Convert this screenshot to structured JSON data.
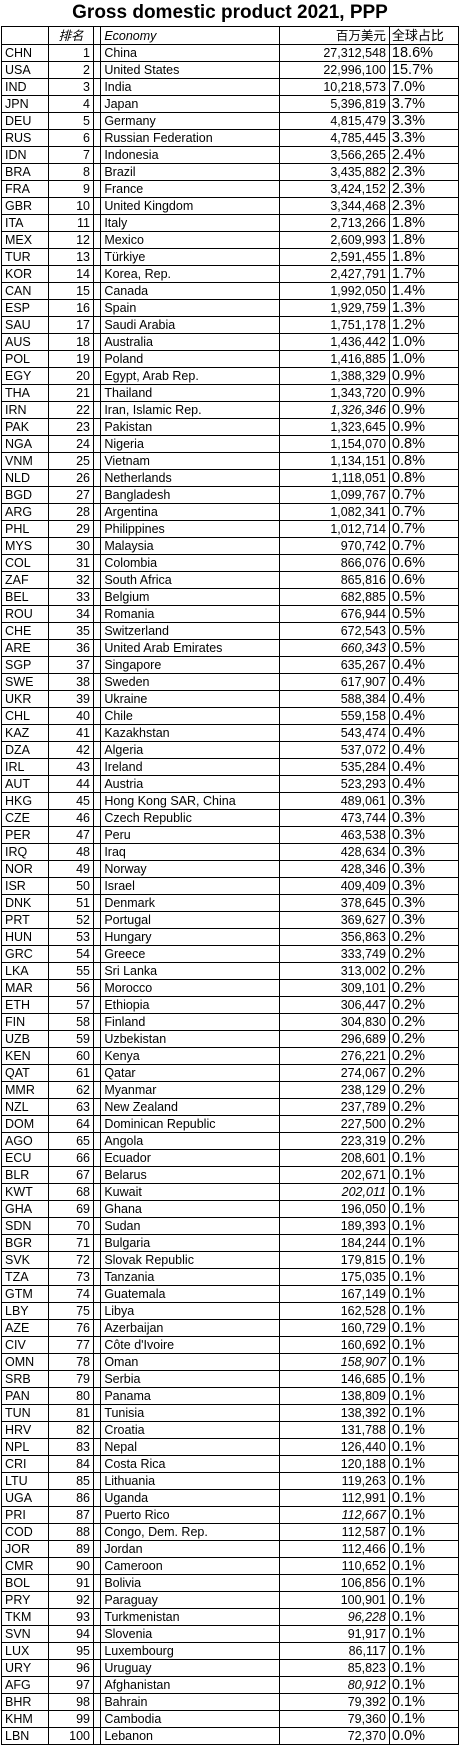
{
  "title": "Gross domestic product 2021, PPP",
  "header": {
    "code": "",
    "rank": "排名",
    "blank": "",
    "economy": "Economy",
    "gdp": "百万美元",
    "share": "全球占比"
  },
  "rows": [
    {
      "code": "CHN",
      "rank": "1",
      "economy": "China",
      "gdp": "27,312,548",
      "share": "18.6%"
    },
    {
      "code": "USA",
      "rank": "2",
      "economy": "United States",
      "gdp": "22,996,100",
      "share": "15.7%"
    },
    {
      "code": "IND",
      "rank": "3",
      "economy": "India",
      "gdp": "10,218,573",
      "share": "7.0%"
    },
    {
      "code": "JPN",
      "rank": "4",
      "economy": "Japan",
      "gdp": "5,396,819",
      "share": "3.7%"
    },
    {
      "code": "DEU",
      "rank": "5",
      "economy": "Germany",
      "gdp": "4,815,479",
      "share": "3.3%"
    },
    {
      "code": "RUS",
      "rank": "6",
      "economy": "Russian Federation",
      "gdp": "4,785,445",
      "share": "3.3%"
    },
    {
      "code": "IDN",
      "rank": "7",
      "economy": "Indonesia",
      "gdp": "3,566,265",
      "share": "2.4%"
    },
    {
      "code": "BRA",
      "rank": "8",
      "economy": "Brazil",
      "gdp": "3,435,882",
      "share": "2.3%"
    },
    {
      "code": "FRA",
      "rank": "9",
      "economy": "France",
      "gdp": "3,424,152",
      "share": "2.3%"
    },
    {
      "code": "GBR",
      "rank": "10",
      "economy": "United Kingdom",
      "gdp": "3,344,468",
      "share": "2.3%"
    },
    {
      "code": "ITA",
      "rank": "11",
      "economy": "Italy",
      "gdp": "2,713,266",
      "share": "1.8%"
    },
    {
      "code": "MEX",
      "rank": "12",
      "economy": "Mexico",
      "gdp": "2,609,993",
      "share": "1.8%"
    },
    {
      "code": "TUR",
      "rank": "13",
      "economy": "Türkiye",
      "gdp": "2,591,455",
      "share": "1.8%"
    },
    {
      "code": "KOR",
      "rank": "14",
      "economy": "Korea, Rep.",
      "gdp": "2,427,791",
      "share": "1.7%"
    },
    {
      "code": "CAN",
      "rank": "15",
      "economy": "Canada",
      "gdp": "1,992,050",
      "share": "1.4%"
    },
    {
      "code": "ESP",
      "rank": "16",
      "economy": "Spain",
      "gdp": "1,929,759",
      "share": "1.3%"
    },
    {
      "code": "SAU",
      "rank": "17",
      "economy": "Saudi Arabia",
      "gdp": "1,751,178",
      "share": "1.2%"
    },
    {
      "code": "AUS",
      "rank": "18",
      "economy": "Australia",
      "gdp": "1,436,442",
      "share": "1.0%"
    },
    {
      "code": "POL",
      "rank": "19",
      "economy": "Poland",
      "gdp": "1,416,885",
      "share": "1.0%"
    },
    {
      "code": "EGY",
      "rank": "20",
      "economy": "Egypt, Arab Rep.",
      "gdp": "1,388,329",
      "share": "0.9%"
    },
    {
      "code": "THA",
      "rank": "21",
      "economy": "Thailand",
      "gdp": "1,343,720",
      "share": "0.9%"
    },
    {
      "code": "IRN",
      "rank": "22",
      "economy": "Iran, Islamic Rep.",
      "gdp": "1,326,346",
      "share": "0.9%",
      "est": true
    },
    {
      "code": "PAK",
      "rank": "23",
      "economy": "Pakistan",
      "gdp": "1,323,645",
      "share": "0.9%"
    },
    {
      "code": "NGA",
      "rank": "24",
      "economy": "Nigeria",
      "gdp": "1,154,070",
      "share": "0.8%"
    },
    {
      "code": "VNM",
      "rank": "25",
      "economy": "Vietnam",
      "gdp": "1,134,151",
      "share": "0.8%"
    },
    {
      "code": "NLD",
      "rank": "26",
      "economy": "Netherlands",
      "gdp": "1,118,051",
      "share": "0.8%"
    },
    {
      "code": "BGD",
      "rank": "27",
      "economy": "Bangladesh",
      "gdp": "1,099,767",
      "share": "0.7%"
    },
    {
      "code": "ARG",
      "rank": "28",
      "economy": "Argentina",
      "gdp": "1,082,341",
      "share": "0.7%"
    },
    {
      "code": "PHL",
      "rank": "29",
      "economy": "Philippines",
      "gdp": "1,012,714",
      "share": "0.7%"
    },
    {
      "code": "MYS",
      "rank": "30",
      "economy": "Malaysia",
      "gdp": "970,742",
      "share": "0.7%"
    },
    {
      "code": "COL",
      "rank": "31",
      "economy": "Colombia",
      "gdp": "866,076",
      "share": "0.6%"
    },
    {
      "code": "ZAF",
      "rank": "32",
      "economy": "South Africa",
      "gdp": "865,816",
      "share": "0.6%"
    },
    {
      "code": "BEL",
      "rank": "33",
      "economy": "Belgium",
      "gdp": "682,885",
      "share": "0.5%"
    },
    {
      "code": "ROU",
      "rank": "34",
      "economy": "Romania",
      "gdp": "676,944",
      "share": "0.5%"
    },
    {
      "code": "CHE",
      "rank": "35",
      "economy": "Switzerland",
      "gdp": "672,543",
      "share": "0.5%"
    },
    {
      "code": "ARE",
      "rank": "36",
      "economy": "United Arab Emirates",
      "gdp": "660,343",
      "share": "0.5%",
      "est": true
    },
    {
      "code": "SGP",
      "rank": "37",
      "economy": "Singapore",
      "gdp": "635,267",
      "share": "0.4%"
    },
    {
      "code": "SWE",
      "rank": "38",
      "economy": "Sweden",
      "gdp": "617,907",
      "share": "0.4%"
    },
    {
      "code": "UKR",
      "rank": "39",
      "economy": "Ukraine",
      "gdp": "588,384",
      "share": "0.4%"
    },
    {
      "code": "CHL",
      "rank": "40",
      "economy": "Chile",
      "gdp": "559,158",
      "share": "0.4%"
    },
    {
      "code": "KAZ",
      "rank": "41",
      "economy": "Kazakhstan",
      "gdp": "543,474",
      "share": "0.4%"
    },
    {
      "code": "DZA",
      "rank": "42",
      "economy": "Algeria",
      "gdp": "537,072",
      "share": "0.4%"
    },
    {
      "code": "IRL",
      "rank": "43",
      "economy": "Ireland",
      "gdp": "535,284",
      "share": "0.4%"
    },
    {
      "code": "AUT",
      "rank": "44",
      "economy": "Austria",
      "gdp": "523,293",
      "share": "0.4%"
    },
    {
      "code": "HKG",
      "rank": "45",
      "economy": "Hong Kong SAR, China",
      "gdp": "489,061",
      "share": "0.3%"
    },
    {
      "code": "CZE",
      "rank": "46",
      "economy": "Czech Republic",
      "gdp": "473,744",
      "share": "0.3%"
    },
    {
      "code": "PER",
      "rank": "47",
      "economy": "Peru",
      "gdp": "463,538",
      "share": "0.3%"
    },
    {
      "code": "IRQ",
      "rank": "48",
      "economy": "Iraq",
      "gdp": "428,634",
      "share": "0.3%"
    },
    {
      "code": "NOR",
      "rank": "49",
      "economy": "Norway",
      "gdp": "428,346",
      "share": "0.3%"
    },
    {
      "code": "ISR",
      "rank": "50",
      "economy": "Israel",
      "gdp": "409,409",
      "share": "0.3%"
    },
    {
      "code": "DNK",
      "rank": "51",
      "economy": "Denmark",
      "gdp": "378,645",
      "share": "0.3%"
    },
    {
      "code": "PRT",
      "rank": "52",
      "economy": "Portugal",
      "gdp": "369,627",
      "share": "0.3%"
    },
    {
      "code": "HUN",
      "rank": "53",
      "economy": "Hungary",
      "gdp": "356,863",
      "share": "0.2%"
    },
    {
      "code": "GRC",
      "rank": "54",
      "economy": "Greece",
      "gdp": "333,749",
      "share": "0.2%"
    },
    {
      "code": "LKA",
      "rank": "55",
      "economy": "Sri Lanka",
      "gdp": "313,002",
      "share": "0.2%"
    },
    {
      "code": "MAR",
      "rank": "56",
      "economy": "Morocco",
      "gdp": "309,101",
      "share": "0.2%"
    },
    {
      "code": "ETH",
      "rank": "57",
      "economy": "Ethiopia",
      "gdp": "306,447",
      "share": "0.2%"
    },
    {
      "code": "FIN",
      "rank": "58",
      "economy": "Finland",
      "gdp": "304,830",
      "share": "0.2%"
    },
    {
      "code": "UZB",
      "rank": "59",
      "economy": "Uzbekistan",
      "gdp": "296,689",
      "share": "0.2%"
    },
    {
      "code": "KEN",
      "rank": "60",
      "economy": "Kenya",
      "gdp": "276,221",
      "share": "0.2%"
    },
    {
      "code": "QAT",
      "rank": "61",
      "economy": "Qatar",
      "gdp": "274,067",
      "share": "0.2%"
    },
    {
      "code": "MMR",
      "rank": "62",
      "economy": "Myanmar",
      "gdp": "238,129",
      "share": "0.2%"
    },
    {
      "code": "NZL",
      "rank": "63",
      "economy": "New Zealand",
      "gdp": "237,789",
      "share": "0.2%"
    },
    {
      "code": "DOM",
      "rank": "64",
      "economy": "Dominican Republic",
      "gdp": "227,500",
      "share": "0.2%"
    },
    {
      "code": "AGO",
      "rank": "65",
      "economy": "Angola",
      "gdp": "223,319",
      "share": "0.2%"
    },
    {
      "code": "ECU",
      "rank": "66",
      "economy": "Ecuador",
      "gdp": "208,601",
      "share": "0.1%"
    },
    {
      "code": "BLR",
      "rank": "67",
      "economy": "Belarus",
      "gdp": "202,671",
      "share": "0.1%"
    },
    {
      "code": "KWT",
      "rank": "68",
      "economy": "Kuwait",
      "gdp": "202,011",
      "share": "0.1%",
      "est": true
    },
    {
      "code": "GHA",
      "rank": "69",
      "economy": "Ghana",
      "gdp": "196,050",
      "share": "0.1%"
    },
    {
      "code": "SDN",
      "rank": "70",
      "economy": "Sudan",
      "gdp": "189,393",
      "share": "0.1%"
    },
    {
      "code": "BGR",
      "rank": "71",
      "economy": "Bulgaria",
      "gdp": "184,244",
      "share": "0.1%"
    },
    {
      "code": "SVK",
      "rank": "72",
      "economy": "Slovak Republic",
      "gdp": "179,815",
      "share": "0.1%"
    },
    {
      "code": "TZA",
      "rank": "73",
      "economy": "Tanzania",
      "gdp": "175,035",
      "share": "0.1%"
    },
    {
      "code": "GTM",
      "rank": "74",
      "economy": "Guatemala",
      "gdp": "167,149",
      "share": "0.1%"
    },
    {
      "code": "LBY",
      "rank": "75",
      "economy": "Libya",
      "gdp": "162,528",
      "share": "0.1%"
    },
    {
      "code": "AZE",
      "rank": "76",
      "economy": "Azerbaijan",
      "gdp": "160,729",
      "share": "0.1%"
    },
    {
      "code": "CIV",
      "rank": "77",
      "economy": "Côte d'Ivoire",
      "gdp": "160,692",
      "share": "0.1%"
    },
    {
      "code": "OMN",
      "rank": "78",
      "economy": "Oman",
      "gdp": "158,907",
      "share": "0.1%",
      "est": true
    },
    {
      "code": "SRB",
      "rank": "79",
      "economy": "Serbia",
      "gdp": "146,685",
      "share": "0.1%"
    },
    {
      "code": "PAN",
      "rank": "80",
      "economy": "Panama",
      "gdp": "138,809",
      "share": "0.1%"
    },
    {
      "code": "TUN",
      "rank": "81",
      "economy": "Tunisia",
      "gdp": "138,392",
      "share": "0.1%"
    },
    {
      "code": "HRV",
      "rank": "82",
      "economy": "Croatia",
      "gdp": "131,788",
      "share": "0.1%"
    },
    {
      "code": "NPL",
      "rank": "83",
      "economy": "Nepal",
      "gdp": "126,440",
      "share": "0.1%"
    },
    {
      "code": "CRI",
      "rank": "84",
      "economy": "Costa Rica",
      "gdp": "120,188",
      "share": "0.1%"
    },
    {
      "code": "LTU",
      "rank": "85",
      "economy": "Lithuania",
      "gdp": "119,263",
      "share": "0.1%"
    },
    {
      "code": "UGA",
      "rank": "86",
      "economy": "Uganda",
      "gdp": "112,991",
      "share": "0.1%"
    },
    {
      "code": "PRI",
      "rank": "87",
      "economy": "Puerto Rico",
      "gdp": "112,667",
      "share": "0.1%",
      "est": true
    },
    {
      "code": "COD",
      "rank": "88",
      "economy": "Congo, Dem. Rep.",
      "gdp": "112,587",
      "share": "0.1%"
    },
    {
      "code": "JOR",
      "rank": "89",
      "economy": "Jordan",
      "gdp": "112,466",
      "share": "0.1%"
    },
    {
      "code": "CMR",
      "rank": "90",
      "economy": "Cameroon",
      "gdp": "110,652",
      "share": "0.1%"
    },
    {
      "code": "BOL",
      "rank": "91",
      "economy": "Bolivia",
      "gdp": "106,856",
      "share": "0.1%"
    },
    {
      "code": "PRY",
      "rank": "92",
      "economy": "Paraguay",
      "gdp": "100,901",
      "share": "0.1%"
    },
    {
      "code": "TKM",
      "rank": "93",
      "economy": "Turkmenistan",
      "gdp": "96,228",
      "share": "0.1%",
      "est": true
    },
    {
      "code": "SVN",
      "rank": "94",
      "economy": "Slovenia",
      "gdp": "91,917",
      "share": "0.1%"
    },
    {
      "code": "LUX",
      "rank": "95",
      "economy": "Luxembourg",
      "gdp": "86,117",
      "share": "0.1%"
    },
    {
      "code": "URY",
      "rank": "96",
      "economy": "Uruguay",
      "gdp": "85,823",
      "share": "0.1%"
    },
    {
      "code": "AFG",
      "rank": "97",
      "economy": "Afghanistan",
      "gdp": "80,912",
      "share": "0.1%",
      "est": true
    },
    {
      "code": "BHR",
      "rank": "98",
      "economy": "Bahrain",
      "gdp": "79,392",
      "share": "0.1%"
    },
    {
      "code": "KHM",
      "rank": "99",
      "economy": "Cambodia",
      "gdp": "79,360",
      "share": "0.1%"
    },
    {
      "code": "LBN",
      "rank": "100",
      "economy": "Lebanon",
      "gdp": "72,370",
      "share": "0.0%"
    }
  ]
}
